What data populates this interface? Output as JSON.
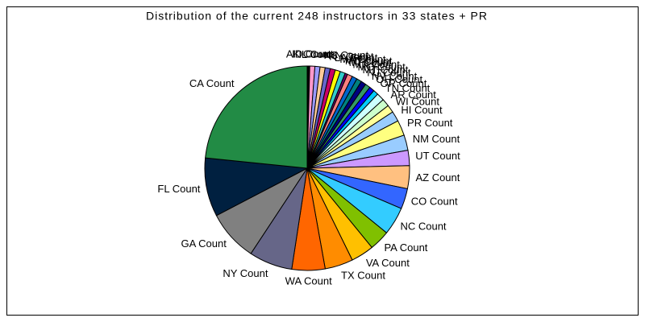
{
  "chart_data": {
    "type": "pie",
    "title": "Distribution of the current 248 instructors in 33 states + PR",
    "categories": [
      "AK Count",
      "ID Count",
      "IL Count",
      "KS Count",
      "KY Count",
      "LA Count",
      "MA Count",
      "MD Count",
      "MI Count",
      "MN Count",
      "MO Count",
      "MT Count",
      "NJ Count",
      "NV Count",
      "OH Count",
      "OR Count",
      "TN Count",
      "AR Count",
      "WI Count",
      "HI Count",
      "PR Count",
      "NM Count",
      "UT Count",
      "AZ Count",
      "CO Count",
      "NC Count",
      "PA Count",
      "VA Count",
      "TX Count",
      "WA Count",
      "NY Count",
      "GA Count",
      "FL Count",
      "CA Count"
    ],
    "values": [
      1,
      2,
      2,
      2,
      2,
      2,
      2,
      2,
      1,
      2,
      2,
      2,
      2,
      2,
      2,
      2,
      3,
      3,
      3,
      4,
      6,
      6,
      6,
      9,
      8,
      11,
      8,
      9,
      11,
      13,
      17,
      20,
      23,
      58
    ],
    "colors": [
      "#000000",
      "#ff99cc",
      "#9999ff",
      "#ffcc99",
      "#6666cc",
      "#cc0066",
      "#ffff00",
      "#33cccc",
      "#660066",
      "#ff8080",
      "#0066cc",
      "#008080",
      "#000080",
      "#339966",
      "#0000ff",
      "#00ccff",
      "#ccffff",
      "#ccffcc",
      "#ffff99",
      "#99ccff",
      "#ffff80",
      "#99ccff",
      "#cc99ff",
      "#ffc080",
      "#3366ff",
      "#33ccff",
      "#80c000",
      "#ffc000",
      "#ff8c00",
      "#ff6600",
      "#666688",
      "#808080",
      "#002040",
      "#228b45"
    ]
  }
}
